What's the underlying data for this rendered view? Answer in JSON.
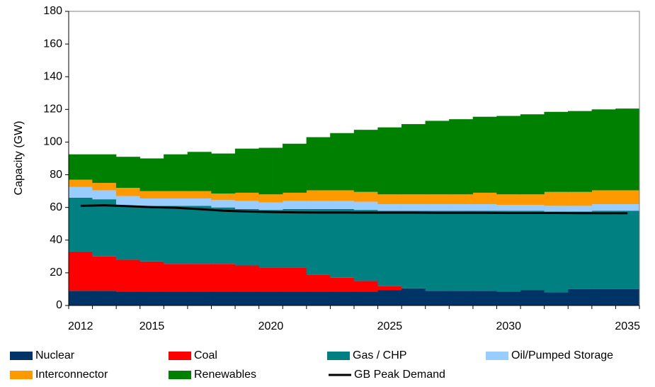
{
  "chart_data": {
    "type": "bar",
    "stacked": true,
    "y_label": "Capacity (GW)",
    "categories": [
      "2012",
      null,
      null,
      "2015",
      null,
      null,
      null,
      null,
      "2020",
      null,
      null,
      null,
      null,
      "2025",
      null,
      null,
      null,
      null,
      "2030",
      null,
      null,
      null,
      null,
      "2035"
    ],
    "series": [
      {
        "name": "Nuclear",
        "color": "#003366",
        "values": [
          9,
          9,
          8.5,
          8.5,
          8.5,
          8.5,
          8.5,
          8.5,
          8.5,
          8.5,
          8.5,
          8.5,
          8.5,
          9.5,
          10.5,
          9,
          9,
          9,
          8.5,
          9.5,
          8,
          10,
          10,
          10
        ]
      },
      {
        "name": "Coal",
        "color": "#ff0000",
        "values": [
          24,
          21,
          19.5,
          18.5,
          17,
          17,
          17,
          16,
          14.5,
          14.5,
          10.5,
          8.5,
          6.5,
          2.5,
          0,
          0,
          0,
          0,
          0,
          0,
          0,
          0,
          0,
          0
        ]
      },
      {
        "name": "Gas / CHP",
        "color": "#008080",
        "values": [
          33,
          35,
          33,
          34,
          35.5,
          35.5,
          34.5,
          34.5,
          35.5,
          36,
          40,
          42,
          43.5,
          46,
          47.5,
          49,
          49,
          49,
          49.5,
          48.5,
          49.5,
          47.5,
          48,
          48
        ]
      },
      {
        "name": "Oil/Pumped Storage",
        "color": "#99ccff",
        "values": [
          6.5,
          5.5,
          6,
          4.5,
          4.5,
          4.5,
          4.5,
          5,
          4.5,
          5,
          5,
          5,
          5,
          4,
          4,
          4,
          4,
          4,
          3.5,
          3.5,
          3.5,
          3.5,
          4,
          4
        ]
      },
      {
        "name": "Interconnector",
        "color": "#ff9900",
        "values": [
          4.5,
          4.5,
          5,
          4.5,
          4.5,
          4.5,
          4,
          5,
          5,
          5,
          6.5,
          6.5,
          6,
          6,
          6,
          6,
          6,
          7,
          6.5,
          6.5,
          8.5,
          8.5,
          8.5,
          8.5
        ]
      },
      {
        "name": "Renewables",
        "color": "#008000",
        "values": [
          15.5,
          17.5,
          19,
          20,
          22.5,
          24,
          24.5,
          27,
          28.5,
          30,
          32.5,
          35,
          38,
          41,
          43,
          45,
          46,
          46.5,
          48,
          49,
          49,
          49.5,
          49.5,
          50
        ]
      },
      {
        "name": "GB Peak Demand",
        "color": "#000000",
        "type": "line",
        "values": [
          61,
          61.3,
          60.8,
          60.2,
          59.8,
          59,
          58,
          57.5,
          57.2,
          57,
          56.9,
          56.9,
          56.8,
          56.8,
          56.8,
          56.7,
          56.7,
          56.7,
          56.6,
          56.6,
          56.6,
          56.5,
          56.5,
          56.5
        ]
      }
    ],
    "ylim": [
      0,
      180
    ],
    "yticks": [
      0,
      20,
      40,
      60,
      80,
      100,
      120,
      140,
      160,
      180
    ],
    "grid": false
  }
}
